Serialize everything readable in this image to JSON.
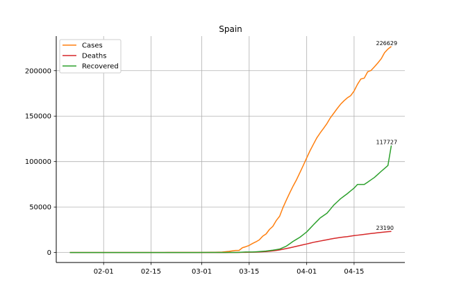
{
  "chart_data": {
    "type": "line",
    "title": "Spain",
    "xlabel": "",
    "ylabel": "",
    "x_start": "2020-01-22",
    "x_end": "2020-04-26",
    "xlim": [
      "2020-01-18",
      "2020-04-30"
    ],
    "ylim": [
      -11000,
      238000
    ],
    "grid": true,
    "legend_position": "top-left",
    "x_ticks": [
      {
        "date": "2020-02-01",
        "label": "02-01"
      },
      {
        "date": "2020-02-15",
        "label": "02-15"
      },
      {
        "date": "2020-03-01",
        "label": "03-01"
      },
      {
        "date": "2020-03-15",
        "label": "03-15"
      },
      {
        "date": "2020-04-01",
        "label": "04-01"
      },
      {
        "date": "2020-04-15",
        "label": "04-15"
      }
    ],
    "y_ticks": [
      {
        "value": 0,
        "label": "0"
      },
      {
        "value": 50000,
        "label": "50000"
      },
      {
        "value": 100000,
        "label": "100000"
      },
      {
        "value": 150000,
        "label": "150000"
      },
      {
        "value": 200000,
        "label": "200000"
      }
    ],
    "series": [
      {
        "name": "Cases",
        "color": "#ff7f0e",
        "points": [
          [
            "2020-01-22",
            0
          ],
          [
            "2020-02-01",
            1
          ],
          [
            "2020-02-15",
            2
          ],
          [
            "2020-03-01",
            84
          ],
          [
            "2020-03-03",
            165
          ],
          [
            "2020-03-05",
            282
          ],
          [
            "2020-03-07",
            500
          ],
          [
            "2020-03-09",
            1231
          ],
          [
            "2020-03-11",
            2277
          ],
          [
            "2020-03-12",
            2277
          ],
          [
            "2020-03-13",
            5232
          ],
          [
            "2020-03-14",
            6391
          ],
          [
            "2020-03-15",
            7798
          ],
          [
            "2020-03-16",
            9942
          ],
          [
            "2020-03-17",
            11748
          ],
          [
            "2020-03-18",
            13910
          ],
          [
            "2020-03-19",
            17963
          ],
          [
            "2020-03-20",
            20410
          ],
          [
            "2020-03-21",
            25374
          ],
          [
            "2020-03-22",
            28768
          ],
          [
            "2020-03-23",
            35136
          ],
          [
            "2020-03-24",
            39885
          ],
          [
            "2020-03-25",
            49515
          ],
          [
            "2020-03-26",
            57786
          ],
          [
            "2020-03-27",
            65719
          ],
          [
            "2020-03-28",
            73235
          ],
          [
            "2020-03-29",
            80110
          ],
          [
            "2020-03-30",
            87956
          ],
          [
            "2020-03-31",
            95923
          ],
          [
            "2020-04-01",
            104118
          ],
          [
            "2020-04-02",
            112065
          ],
          [
            "2020-04-03",
            119199
          ],
          [
            "2020-04-04",
            126168
          ],
          [
            "2020-04-05",
            131646
          ],
          [
            "2020-04-06",
            136675
          ],
          [
            "2020-04-07",
            141942
          ],
          [
            "2020-04-08",
            148220
          ],
          [
            "2020-04-09",
            153222
          ],
          [
            "2020-04-10",
            158273
          ],
          [
            "2020-04-11",
            163027
          ],
          [
            "2020-04-12",
            166831
          ],
          [
            "2020-04-13",
            170099
          ],
          [
            "2020-04-14",
            172541
          ],
          [
            "2020-04-15",
            177644
          ],
          [
            "2020-04-16",
            184948
          ],
          [
            "2020-04-17",
            190839
          ],
          [
            "2020-04-18",
            191726
          ],
          [
            "2020-04-19",
            198674
          ],
          [
            "2020-04-20",
            200210
          ],
          [
            "2020-04-21",
            204178
          ],
          [
            "2020-04-22",
            208389
          ],
          [
            "2020-04-23",
            213024
          ],
          [
            "2020-04-24",
            219764
          ],
          [
            "2020-04-25",
            223759
          ],
          [
            "2020-04-26",
            226629
          ]
        ]
      },
      {
        "name": "Deaths",
        "color": "#d62728",
        "points": [
          [
            "2020-01-22",
            0
          ],
          [
            "2020-03-08",
            17
          ],
          [
            "2020-03-10",
            35
          ],
          [
            "2020-03-12",
            84
          ],
          [
            "2020-03-14",
            195
          ],
          [
            "2020-03-16",
            342
          ],
          [
            "2020-03-18",
            623
          ],
          [
            "2020-03-20",
            1043
          ],
          [
            "2020-03-22",
            1772
          ],
          [
            "2020-03-24",
            2808
          ],
          [
            "2020-03-26",
            4365
          ],
          [
            "2020-03-28",
            5982
          ],
          [
            "2020-03-30",
            7716
          ],
          [
            "2020-04-01",
            9387
          ],
          [
            "2020-04-03",
            11198
          ],
          [
            "2020-04-05",
            12641
          ],
          [
            "2020-04-07",
            14045
          ],
          [
            "2020-04-09",
            15447
          ],
          [
            "2020-04-11",
            16606
          ],
          [
            "2020-04-13",
            17489
          ],
          [
            "2020-04-15",
            18579
          ],
          [
            "2020-04-17",
            19478
          ],
          [
            "2020-04-19",
            20453
          ],
          [
            "2020-04-21",
            21282
          ],
          [
            "2020-04-23",
            22157
          ],
          [
            "2020-04-25",
            22902
          ],
          [
            "2020-04-26",
            23190
          ]
        ]
      },
      {
        "name": "Recovered",
        "color": "#2ca02c",
        "points": [
          [
            "2020-01-22",
            0
          ],
          [
            "2020-03-10",
            32
          ],
          [
            "2020-03-12",
            183
          ],
          [
            "2020-03-14",
            517
          ],
          [
            "2020-03-16",
            530
          ],
          [
            "2020-03-18",
            1028
          ],
          [
            "2020-03-20",
            1588
          ],
          [
            "2020-03-22",
            2575
          ],
          [
            "2020-03-24",
            3794
          ],
          [
            "2020-03-26",
            7015
          ],
          [
            "2020-03-28",
            12285
          ],
          [
            "2020-03-30",
            16780
          ],
          [
            "2020-04-01",
            22647
          ],
          [
            "2020-04-03",
            30513
          ],
          [
            "2020-04-05",
            38080
          ],
          [
            "2020-04-07",
            43208
          ],
          [
            "2020-04-09",
            52165
          ],
          [
            "2020-04-11",
            59109
          ],
          [
            "2020-04-13",
            64727
          ],
          [
            "2020-04-15",
            70853
          ],
          [
            "2020-04-16",
            74797
          ],
          [
            "2020-04-18",
            74797
          ],
          [
            "2020-04-19",
            77357
          ],
          [
            "2020-04-21",
            82514
          ],
          [
            "2020-04-23",
            89250
          ],
          [
            "2020-04-25",
            95708
          ],
          [
            "2020-04-26",
            117727
          ]
        ]
      }
    ],
    "annotations": [
      {
        "date": "2020-04-26",
        "value": 226629,
        "label": "226629"
      },
      {
        "date": "2020-04-26",
        "value": 117727,
        "label": "117727"
      },
      {
        "date": "2020-04-26",
        "value": 23190,
        "label": "23190"
      }
    ]
  }
}
